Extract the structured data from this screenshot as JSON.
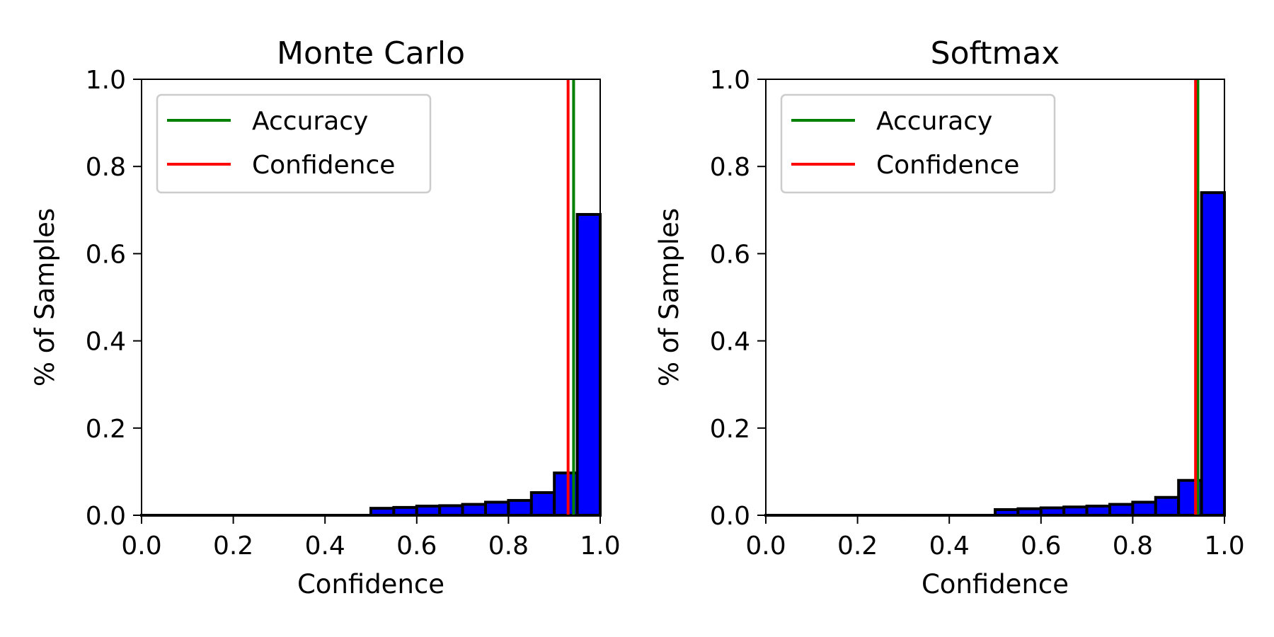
{
  "chart_data": [
    {
      "type": "bar",
      "title": "Monte Carlo",
      "xlabel": "Confidence",
      "ylabel": "% of Samples",
      "xlim": [
        0,
        1
      ],
      "ylim": [
        0,
        1
      ],
      "xticks": [
        "0.0",
        "0.2",
        "0.4",
        "0.6",
        "0.8",
        "1.0"
      ],
      "yticks": [
        "0.0",
        "0.2",
        "0.4",
        "0.6",
        "0.8",
        "1.0"
      ],
      "bin_width": 0.05,
      "bins": [
        0.0,
        0.05,
        0.1,
        0.15,
        0.2,
        0.25,
        0.3,
        0.35,
        0.4,
        0.45,
        0.5,
        0.55,
        0.6,
        0.65,
        0.7,
        0.75,
        0.8,
        0.85,
        0.9,
        0.95
      ],
      "values": [
        0,
        0,
        0,
        0,
        0,
        0,
        0,
        0,
        0,
        0,
        0.016,
        0.018,
        0.021,
        0.022,
        0.025,
        0.03,
        0.034,
        0.052,
        0.097,
        0.69
      ],
      "bar_color": "#0000ff",
      "edge_color": "#000000",
      "accuracy": 0.942,
      "confidence": 0.93,
      "legend": {
        "position": "upper left",
        "entries": [
          {
            "label": "Accuracy",
            "color": "#008000"
          },
          {
            "label": "Confidence",
            "color": "#ff0000"
          }
        ]
      },
      "grid": false
    },
    {
      "type": "bar",
      "title": "Softmax",
      "xlabel": "Confidence",
      "ylabel": "% of Samples",
      "xlim": [
        0,
        1
      ],
      "ylim": [
        0,
        1
      ],
      "xticks": [
        "0.0",
        "0.2",
        "0.4",
        "0.6",
        "0.8",
        "1.0"
      ],
      "yticks": [
        "0.0",
        "0.2",
        "0.4",
        "0.6",
        "0.8",
        "1.0"
      ],
      "bin_width": 0.05,
      "bins": [
        0.0,
        0.05,
        0.1,
        0.15,
        0.2,
        0.25,
        0.3,
        0.35,
        0.4,
        0.45,
        0.5,
        0.55,
        0.6,
        0.65,
        0.7,
        0.75,
        0.8,
        0.85,
        0.9,
        0.95
      ],
      "values": [
        0,
        0,
        0,
        0,
        0,
        0,
        0,
        0,
        0,
        0,
        0.013,
        0.015,
        0.017,
        0.019,
        0.021,
        0.025,
        0.03,
        0.041,
        0.08,
        0.74
      ],
      "bar_color": "#0000ff",
      "edge_color": "#000000",
      "accuracy": 0.942,
      "confidence": 0.937,
      "legend": {
        "position": "upper left",
        "entries": [
          {
            "label": "Accuracy",
            "color": "#008000"
          },
          {
            "label": "Confidence",
            "color": "#ff0000"
          }
        ]
      },
      "grid": false
    }
  ]
}
